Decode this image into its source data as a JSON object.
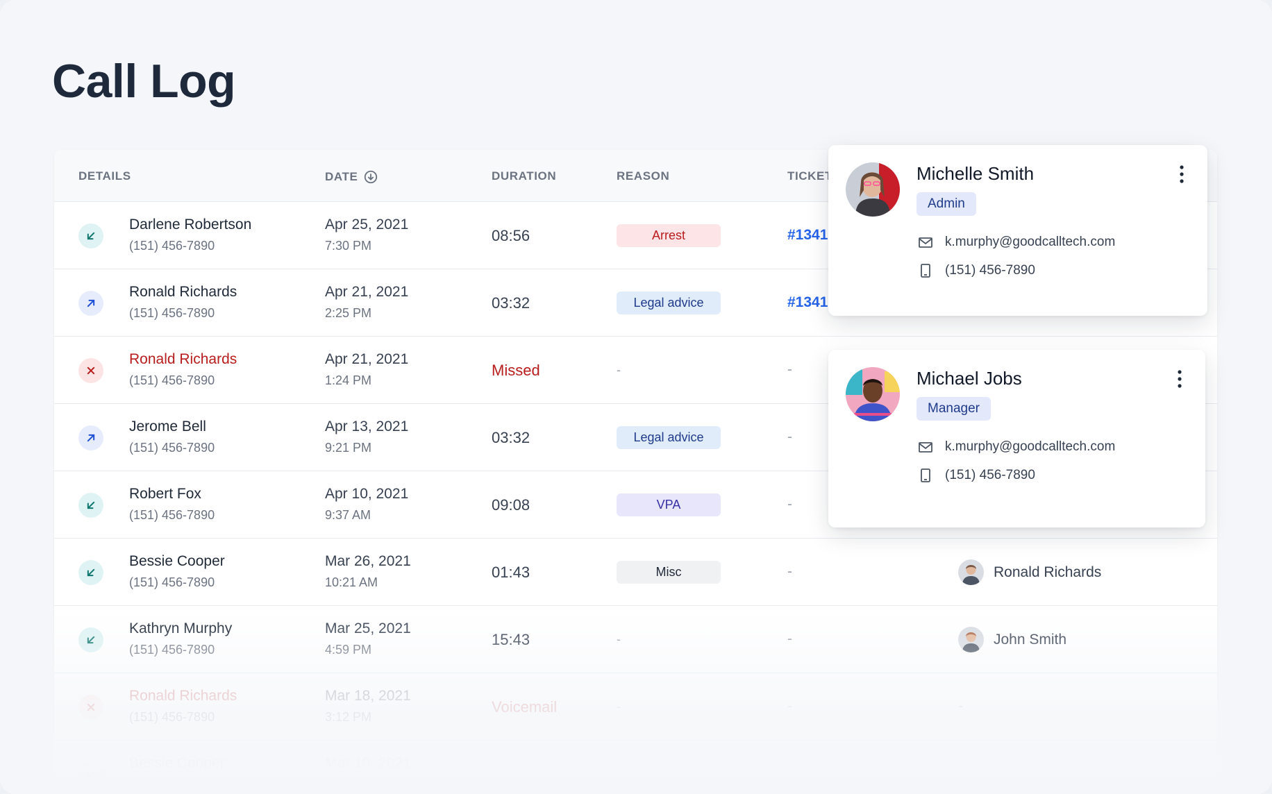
{
  "page": {
    "title": "Call Log"
  },
  "table": {
    "columns": {
      "details": "Details",
      "date": "Date",
      "duration": "Duration",
      "reason": "Reason",
      "ticket": "Ticket"
    },
    "rows": [
      {
        "direction": "incoming",
        "name": "Darlene Robertson",
        "phone": "(151) 456-7890",
        "date": "Apr 25, 2021",
        "time": "7:30 PM",
        "duration": "08:56",
        "reason": "Arrest",
        "reason_type": "arrest",
        "ticket": "#1341",
        "agent": ""
      },
      {
        "direction": "outgoing",
        "name": "Ronald Richards",
        "phone": "(151) 456-7890",
        "date": "Apr 21, 2021",
        "time": "2:25 PM",
        "duration": "03:32",
        "reason": "Legal advice",
        "reason_type": "legal",
        "ticket": "#1341",
        "agent": ""
      },
      {
        "direction": "missed",
        "name": "Ronald Richards",
        "phone": "(151) 456-7890",
        "date": "Apr 21, 2021",
        "time": "1:24 PM",
        "duration": "Missed",
        "reason": "-",
        "reason_type": "none",
        "ticket": "-",
        "agent": ""
      },
      {
        "direction": "outgoing",
        "name": "Jerome Bell",
        "phone": "(151) 456-7890",
        "date": "Apr 13, 2021",
        "time": "9:21 PM",
        "duration": "03:32",
        "reason": "Legal advice",
        "reason_type": "legal",
        "ticket": "-",
        "agent": ""
      },
      {
        "direction": "incoming",
        "name": "Robert Fox",
        "phone": "(151) 456-7890",
        "date": "Apr 10, 2021",
        "time": "9:37 AM",
        "duration": "09:08",
        "reason": "VPA",
        "reason_type": "vpa",
        "ticket": "-",
        "agent": ""
      },
      {
        "direction": "incoming",
        "name": "Bessie Cooper",
        "phone": "(151) 456-7890",
        "date": "Mar 26, 2021",
        "time": "10:21 AM",
        "duration": "01:43",
        "reason": "Misc",
        "reason_type": "misc",
        "ticket": "-",
        "agent": "Ronald Richards"
      },
      {
        "direction": "incoming",
        "name": "Kathryn Murphy",
        "phone": "(151) 456-7890",
        "date": "Mar 25, 2021",
        "time": "4:59 PM",
        "duration": "15:43",
        "reason": "-",
        "reason_type": "none",
        "ticket": "-",
        "agent": "John Smith"
      },
      {
        "direction": "missed",
        "name": "Ronald Richards",
        "phone": "(151) 456-7890",
        "date": "Mar 18, 2021",
        "time": "3:12 PM",
        "duration": "Voicemail",
        "reason": "-",
        "reason_type": "none",
        "ticket": "-",
        "agent": "-"
      },
      {
        "direction": "incoming",
        "name": "Bessie Cooper",
        "phone": "",
        "date": "Mar 10, 2021",
        "time": "",
        "duration": "",
        "reason": "",
        "reason_type": "none",
        "ticket": "",
        "agent": ""
      }
    ]
  },
  "popovers": [
    {
      "name": "Michelle Smith",
      "role": "Admin",
      "email": "k.murphy@goodcalltech.com",
      "phone": "(151) 456-7890"
    },
    {
      "name": "Michael Jobs",
      "role": "Manager",
      "email": "k.murphy@goodcalltech.com",
      "phone": "(151) 456-7890"
    }
  ],
  "colors": {
    "accent": "#2563eb",
    "missed": "#b91c1c",
    "incoming_icon": "#0f766e",
    "outgoing_icon": "#1d4ed8"
  },
  "icons": {
    "incoming": "arrow-down-left-icon",
    "outgoing": "arrow-up-right-icon",
    "missed": "x-icon",
    "sort": "sort-down-icon",
    "email": "mail-icon",
    "phone": "mobile-phone-icon",
    "menu": "more-vertical-icon"
  }
}
